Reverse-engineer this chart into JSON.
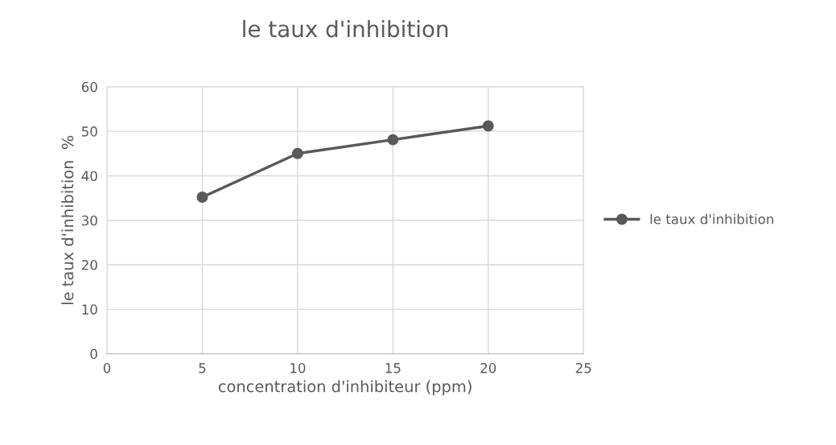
{
  "chart_data": {
    "type": "line",
    "title": "le taux d'inhibition",
    "xlabel": "concentration d'inhibiteur (ppm)",
    "ylabel": "le taux d'inhibition  %",
    "x": [
      5,
      10,
      15,
      20
    ],
    "series": [
      {
        "name": "le taux d'inhibition",
        "color": "#595959",
        "values": [
          35.2,
          45.0,
          48.1,
          51.2
        ]
      }
    ],
    "xlim": [
      0,
      25
    ],
    "xticks": [
      0,
      5,
      10,
      15,
      20,
      25
    ],
    "ylim": [
      0,
      60
    ],
    "yticks": [
      0,
      10,
      20,
      30,
      40,
      50,
      60
    ],
    "grid": true,
    "legend": "right",
    "marker": "circle",
    "line_style": "solid"
  }
}
